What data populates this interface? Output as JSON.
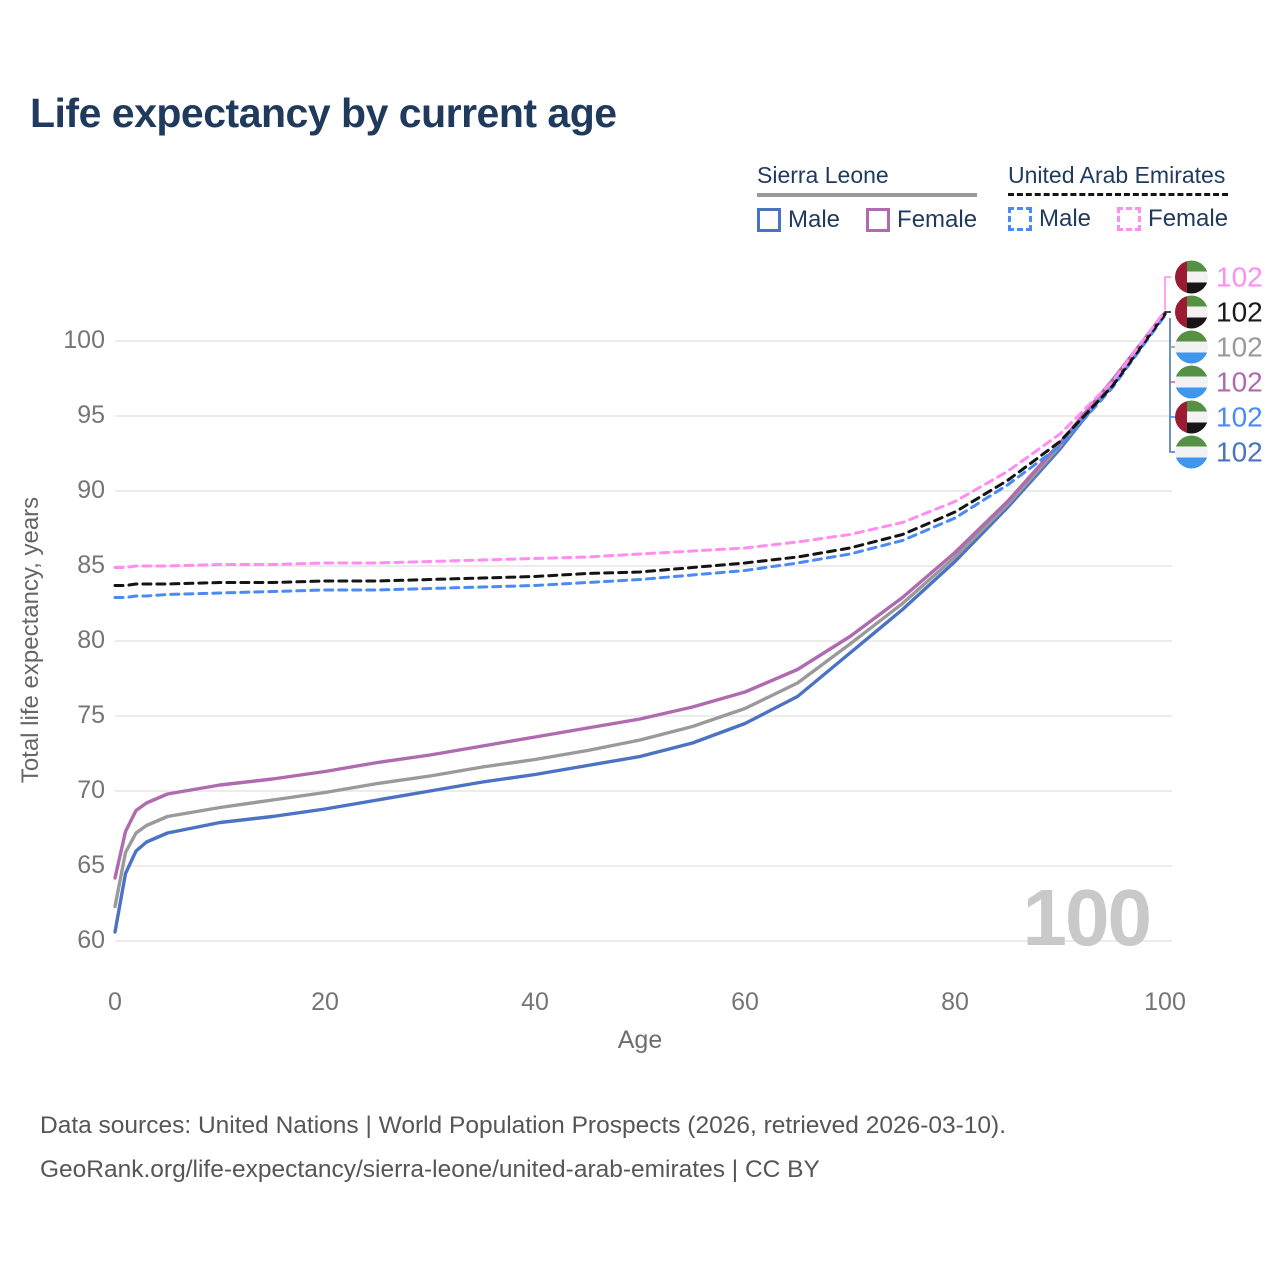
{
  "header": {
    "title": "Life expectancy by current age"
  },
  "legend": {
    "groups": [
      {
        "id": "sierra-leone",
        "title": "Sierra Leone",
        "line": {
          "color": "#9a9a9a",
          "dashed": false
        },
        "items": [
          {
            "label": "Male",
            "color": "#4a73c4",
            "dashed": false
          },
          {
            "label": "Female",
            "color": "#b06ab0",
            "dashed": false
          }
        ]
      },
      {
        "id": "united-arab-emirates",
        "title": "United Arab Emirates",
        "line": {
          "color": "#141414",
          "dashed": true
        },
        "items": [
          {
            "label": "Male",
            "color": "#4b8af5",
            "dashed": true
          },
          {
            "label": "Female",
            "color": "#ff8df2",
            "dashed": true
          }
        ]
      }
    ]
  },
  "axes": {
    "x_label": "Age",
    "y_label": "Total life expectancy, years",
    "x_ticks": [
      0,
      20,
      40,
      60,
      80,
      100
    ],
    "y_ticks": [
      60,
      65,
      70,
      75,
      80,
      85,
      90,
      95,
      100
    ],
    "x_range": [
      0,
      100
    ],
    "y_range": [
      60,
      100
    ],
    "grid": "horizontal-only"
  },
  "chart_data": {
    "type": "line",
    "title": "Life expectancy by current age",
    "xlabel": "Age",
    "ylabel": "Total life expectancy, years",
    "xlim": [
      0,
      100
    ],
    "ylim": [
      60,
      102
    ],
    "legend_position": "top-right",
    "x": [
      0,
      1,
      2,
      3,
      5,
      10,
      15,
      20,
      25,
      30,
      35,
      40,
      45,
      50,
      55,
      60,
      65,
      70,
      75,
      80,
      85,
      90,
      95,
      100
    ],
    "series": [
      {
        "name": "Sierra Leone Male",
        "color": "#4a73c4",
        "dashed": false,
        "values": [
          60.6,
          64.5,
          66.0,
          66.6,
          67.2,
          67.9,
          68.3,
          68.8,
          69.4,
          70.0,
          70.6,
          71.1,
          71.7,
          72.3,
          73.2,
          74.5,
          76.3,
          79.2,
          82.1,
          85.3,
          88.9,
          92.8,
          97.2,
          101.8
        ]
      },
      {
        "name": "Sierra Leone Both sexes",
        "color": "#9a9a9a",
        "dashed": false,
        "values": [
          62.3,
          65.9,
          67.2,
          67.7,
          68.3,
          68.9,
          69.4,
          69.9,
          70.5,
          71.0,
          71.6,
          72.1,
          72.7,
          73.4,
          74.3,
          75.5,
          77.2,
          79.8,
          82.5,
          85.6,
          89.1,
          93.0,
          97.3,
          101.8
        ]
      },
      {
        "name": "Sierra Leone Female",
        "color": "#b06ab0",
        "dashed": false,
        "values": [
          64.2,
          67.3,
          68.7,
          69.2,
          69.8,
          70.4,
          70.8,
          71.3,
          71.9,
          72.4,
          73.0,
          73.6,
          74.2,
          74.8,
          75.6,
          76.6,
          78.1,
          80.3,
          82.9,
          85.9,
          89.3,
          93.2,
          97.4,
          101.9
        ]
      },
      {
        "name": "United Arab Emirates Male",
        "color": "#4b8af5",
        "dashed": true,
        "values": [
          82.9,
          82.9,
          83.0,
          83.0,
          83.1,
          83.2,
          83.3,
          83.4,
          83.4,
          83.5,
          83.6,
          83.7,
          83.9,
          84.1,
          84.4,
          84.7,
          85.2,
          85.8,
          86.7,
          88.2,
          90.4,
          93.0,
          96.9,
          101.7
        ]
      },
      {
        "name": "United Arab Emirates Both sexes",
        "color": "#141414",
        "dashed": true,
        "values": [
          83.7,
          83.7,
          83.8,
          83.8,
          83.8,
          83.9,
          83.9,
          84.0,
          84.0,
          84.1,
          84.2,
          84.3,
          84.5,
          84.6,
          84.9,
          85.2,
          85.6,
          86.2,
          87.1,
          88.6,
          90.7,
          93.3,
          97.0,
          101.8
        ]
      },
      {
        "name": "United Arab Emirates Female",
        "color": "#ff8df2",
        "dashed": true,
        "values": [
          84.9,
          84.9,
          85.0,
          85.0,
          85.0,
          85.1,
          85.1,
          85.2,
          85.2,
          85.3,
          85.4,
          85.5,
          85.6,
          85.8,
          86.0,
          86.2,
          86.6,
          87.1,
          87.9,
          89.3,
          91.3,
          93.8,
          97.3,
          102.0
        ]
      }
    ]
  },
  "end_labels": [
    {
      "flag": "uae",
      "value": "102",
      "color": "#ff8df2"
    },
    {
      "flag": "uae",
      "value": "102",
      "color": "#1a1a1a"
    },
    {
      "flag": "sl",
      "value": "102",
      "color": "#9a9a9a"
    },
    {
      "flag": "sl",
      "value": "102",
      "color": "#b06ab0"
    },
    {
      "flag": "uae",
      "value": "102",
      "color": "#4b8af5"
    },
    {
      "flag": "sl",
      "value": "102",
      "color": "#4a73c4"
    }
  ],
  "icons": {
    "sierra-leone-flag-icon": {
      "type": "horizontal-bands",
      "colors": [
        "#569044",
        "#f2f2f2",
        "#3f96ee"
      ]
    },
    "uae-flag-icon": {
      "type": "uae",
      "red": "#9b1b33",
      "bands": [
        "#569044",
        "#f2f2f2",
        "#161616"
      ]
    }
  },
  "watermark": {
    "text": "100"
  },
  "footer": {
    "line1": "Data sources: United Nations | World Population Prospects (2026, retrieved 2026-03-10).",
    "line2": "GeoRank.org/life-expectancy/sierra-leone/united-arab-emirates | CC BY"
  },
  "colors": {
    "title": "#1f3a5c",
    "grid": "#e5e5e5",
    "tick_text": "#757575",
    "watermark": "#c9c9c9"
  }
}
